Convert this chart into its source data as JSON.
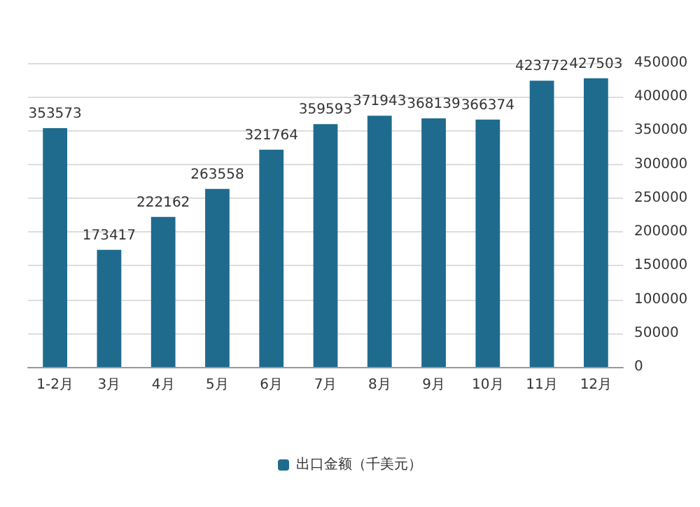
{
  "chart_data": {
    "type": "bar",
    "categories": [
      "1-2月",
      "3月",
      "4月",
      "5月",
      "6月",
      "7月",
      "8月",
      "9月",
      "10月",
      "11月",
      "12月"
    ],
    "series": [
      {
        "name": "出口金额（千美元）",
        "color": "#1f6b8e",
        "values": [
          353573,
          173417,
          222162,
          263558,
          321764,
          359593,
          371943,
          368139,
          366374,
          423772,
          427503
        ]
      }
    ],
    "ylim": [
      0,
      450000
    ],
    "yticks": [
      0,
      50000,
      100000,
      150000,
      200000,
      250000,
      300000,
      350000,
      400000,
      450000
    ],
    "grid": "y",
    "legend": "bottom",
    "data_labels": true
  }
}
